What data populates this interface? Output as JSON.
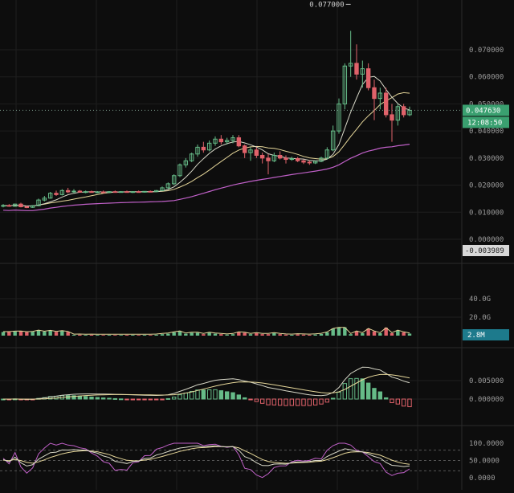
{
  "theme": {
    "background": "#0d0d0d",
    "grid": "#1e1e1e",
    "separator": "#2a2a2a",
    "up": "#66bb88",
    "down": "#e0626a",
    "ma_fast": "#d8d8c8",
    "ma_mid": "#e6d79a",
    "ma_slow": "#c060c8",
    "label_text": "#9a9a9a",
    "price_tag_bg": "#3aa070",
    "neg_tag_bg": "#d8d8d8",
    "volume_tag_bg": "#1d7a8c",
    "dashed": "#555555"
  },
  "chart_data": [
    {
      "panel": "price",
      "type": "candlestick",
      "y_ticks": [
        "0.070000",
        "0.060000",
        "0.050000",
        "0.040000",
        "0.030000",
        "0.020000",
        "0.010000",
        "0.000000"
      ],
      "ylim": [
        -0.003989,
        0.078
      ],
      "current_price": "0.047630",
      "countdown": "12:08:50",
      "low_marker": "-0.003989",
      "peak_annotation": "0.077000",
      "candles": [
        [
          0.0122,
          0.013,
          0.0118,
          0.0125
        ],
        [
          0.0125,
          0.013,
          0.012,
          0.0122
        ],
        [
          0.0122,
          0.0132,
          0.012,
          0.013
        ],
        [
          0.013,
          0.0135,
          0.0118,
          0.012
        ],
        [
          0.012,
          0.0125,
          0.0115,
          0.0118
        ],
        [
          0.0118,
          0.0126,
          0.0116,
          0.0124
        ],
        [
          0.0124,
          0.015,
          0.0122,
          0.0145
        ],
        [
          0.0145,
          0.016,
          0.014,
          0.0152
        ],
        [
          0.0152,
          0.0175,
          0.015,
          0.017
        ],
        [
          0.017,
          0.018,
          0.016,
          0.0165
        ],
        [
          0.0165,
          0.0185,
          0.0162,
          0.018
        ],
        [
          0.018,
          0.019,
          0.017,
          0.0175
        ],
        [
          0.0175,
          0.0185,
          0.017,
          0.0178
        ],
        [
          0.0178,
          0.0182,
          0.0172,
          0.0174
        ],
        [
          0.0174,
          0.018,
          0.017,
          0.0176
        ],
        [
          0.0176,
          0.018,
          0.0172,
          0.0173
        ],
        [
          0.0173,
          0.0178,
          0.017,
          0.0175
        ],
        [
          0.0175,
          0.018,
          0.0172,
          0.0174
        ],
        [
          0.0174,
          0.0178,
          0.017,
          0.0176
        ],
        [
          0.0176,
          0.018,
          0.0172,
          0.0175
        ],
        [
          0.0175,
          0.0178,
          0.0172,
          0.0176
        ],
        [
          0.0176,
          0.018,
          0.0172,
          0.0174
        ],
        [
          0.0174,
          0.0178,
          0.0171,
          0.0176
        ],
        [
          0.0176,
          0.018,
          0.0173,
          0.0175
        ],
        [
          0.0175,
          0.0178,
          0.0172,
          0.0177
        ],
        [
          0.0177,
          0.018,
          0.0174,
          0.0176
        ],
        [
          0.0176,
          0.0182,
          0.0174,
          0.018
        ],
        [
          0.018,
          0.0195,
          0.0178,
          0.019
        ],
        [
          0.019,
          0.021,
          0.0185,
          0.0205
        ],
        [
          0.0205,
          0.024,
          0.02,
          0.0235
        ],
        [
          0.0235,
          0.028,
          0.023,
          0.0275
        ],
        [
          0.0275,
          0.03,
          0.0265,
          0.029
        ],
        [
          0.029,
          0.032,
          0.0285,
          0.0315
        ],
        [
          0.0315,
          0.035,
          0.0305,
          0.034
        ],
        [
          0.034,
          0.036,
          0.032,
          0.033
        ],
        [
          0.033,
          0.0365,
          0.0325,
          0.0355
        ],
        [
          0.0355,
          0.038,
          0.0345,
          0.037
        ],
        [
          0.037,
          0.0385,
          0.035,
          0.036
        ],
        [
          0.036,
          0.0375,
          0.035,
          0.0365
        ],
        [
          0.0365,
          0.0385,
          0.0355,
          0.0375
        ],
        [
          0.0375,
          0.0385,
          0.034,
          0.0345
        ],
        [
          0.0345,
          0.035,
          0.03,
          0.032
        ],
        [
          0.032,
          0.034,
          0.029,
          0.033
        ],
        [
          0.033,
          0.034,
          0.03,
          0.031
        ],
        [
          0.031,
          0.032,
          0.028,
          0.03
        ],
        [
          0.03,
          0.0315,
          0.024,
          0.029
        ],
        [
          0.029,
          0.032,
          0.0285,
          0.031
        ],
        [
          0.031,
          0.0325,
          0.0295,
          0.03
        ],
        [
          0.03,
          0.031,
          0.028,
          0.0295
        ],
        [
          0.0295,
          0.0305,
          0.029,
          0.0298
        ],
        [
          0.0298,
          0.0304,
          0.0285,
          0.029
        ],
        [
          0.029,
          0.0295,
          0.0278,
          0.0285
        ],
        [
          0.0285,
          0.0292,
          0.0275,
          0.0282
        ],
        [
          0.0282,
          0.029,
          0.0278,
          0.0288
        ],
        [
          0.0288,
          0.0305,
          0.0285,
          0.03
        ],
        [
          0.03,
          0.034,
          0.0295,
          0.033
        ],
        [
          0.033,
          0.042,
          0.0325,
          0.04
        ],
        [
          0.04,
          0.052,
          0.039,
          0.05
        ],
        [
          0.05,
          0.065,
          0.048,
          0.064
        ],
        [
          0.064,
          0.077,
          0.06,
          0.065
        ],
        [
          0.065,
          0.072,
          0.059,
          0.061
        ],
        [
          0.061,
          0.066,
          0.056,
          0.063
        ],
        [
          0.063,
          0.065,
          0.055,
          0.056
        ],
        [
          0.056,
          0.059,
          0.044,
          0.052
        ],
        [
          0.052,
          0.056,
          0.048,
          0.054
        ],
        [
          0.054,
          0.056,
          0.045,
          0.046
        ],
        [
          0.046,
          0.05,
          0.036,
          0.044
        ],
        [
          0.044,
          0.05,
          0.042,
          0.049
        ],
        [
          0.049,
          0.05,
          0.045,
          0.046
        ],
        [
          0.046,
          0.049,
          0.0455,
          0.0476
        ]
      ]
    },
    {
      "panel": "volume",
      "type": "bar",
      "y_ticks": [
        "40.0G",
        "20.0G"
      ],
      "current_volume": "2.8M"
    },
    {
      "panel": "macd",
      "type": "bar",
      "y_ticks": [
        "0.005000",
        "0.000000"
      ]
    },
    {
      "panel": "oscillator",
      "type": "line",
      "y_ticks": [
        "100.0000",
        "50.0000",
        "0.0000"
      ],
      "dashed_levels": [
        80,
        50,
        20
      ]
    }
  ]
}
